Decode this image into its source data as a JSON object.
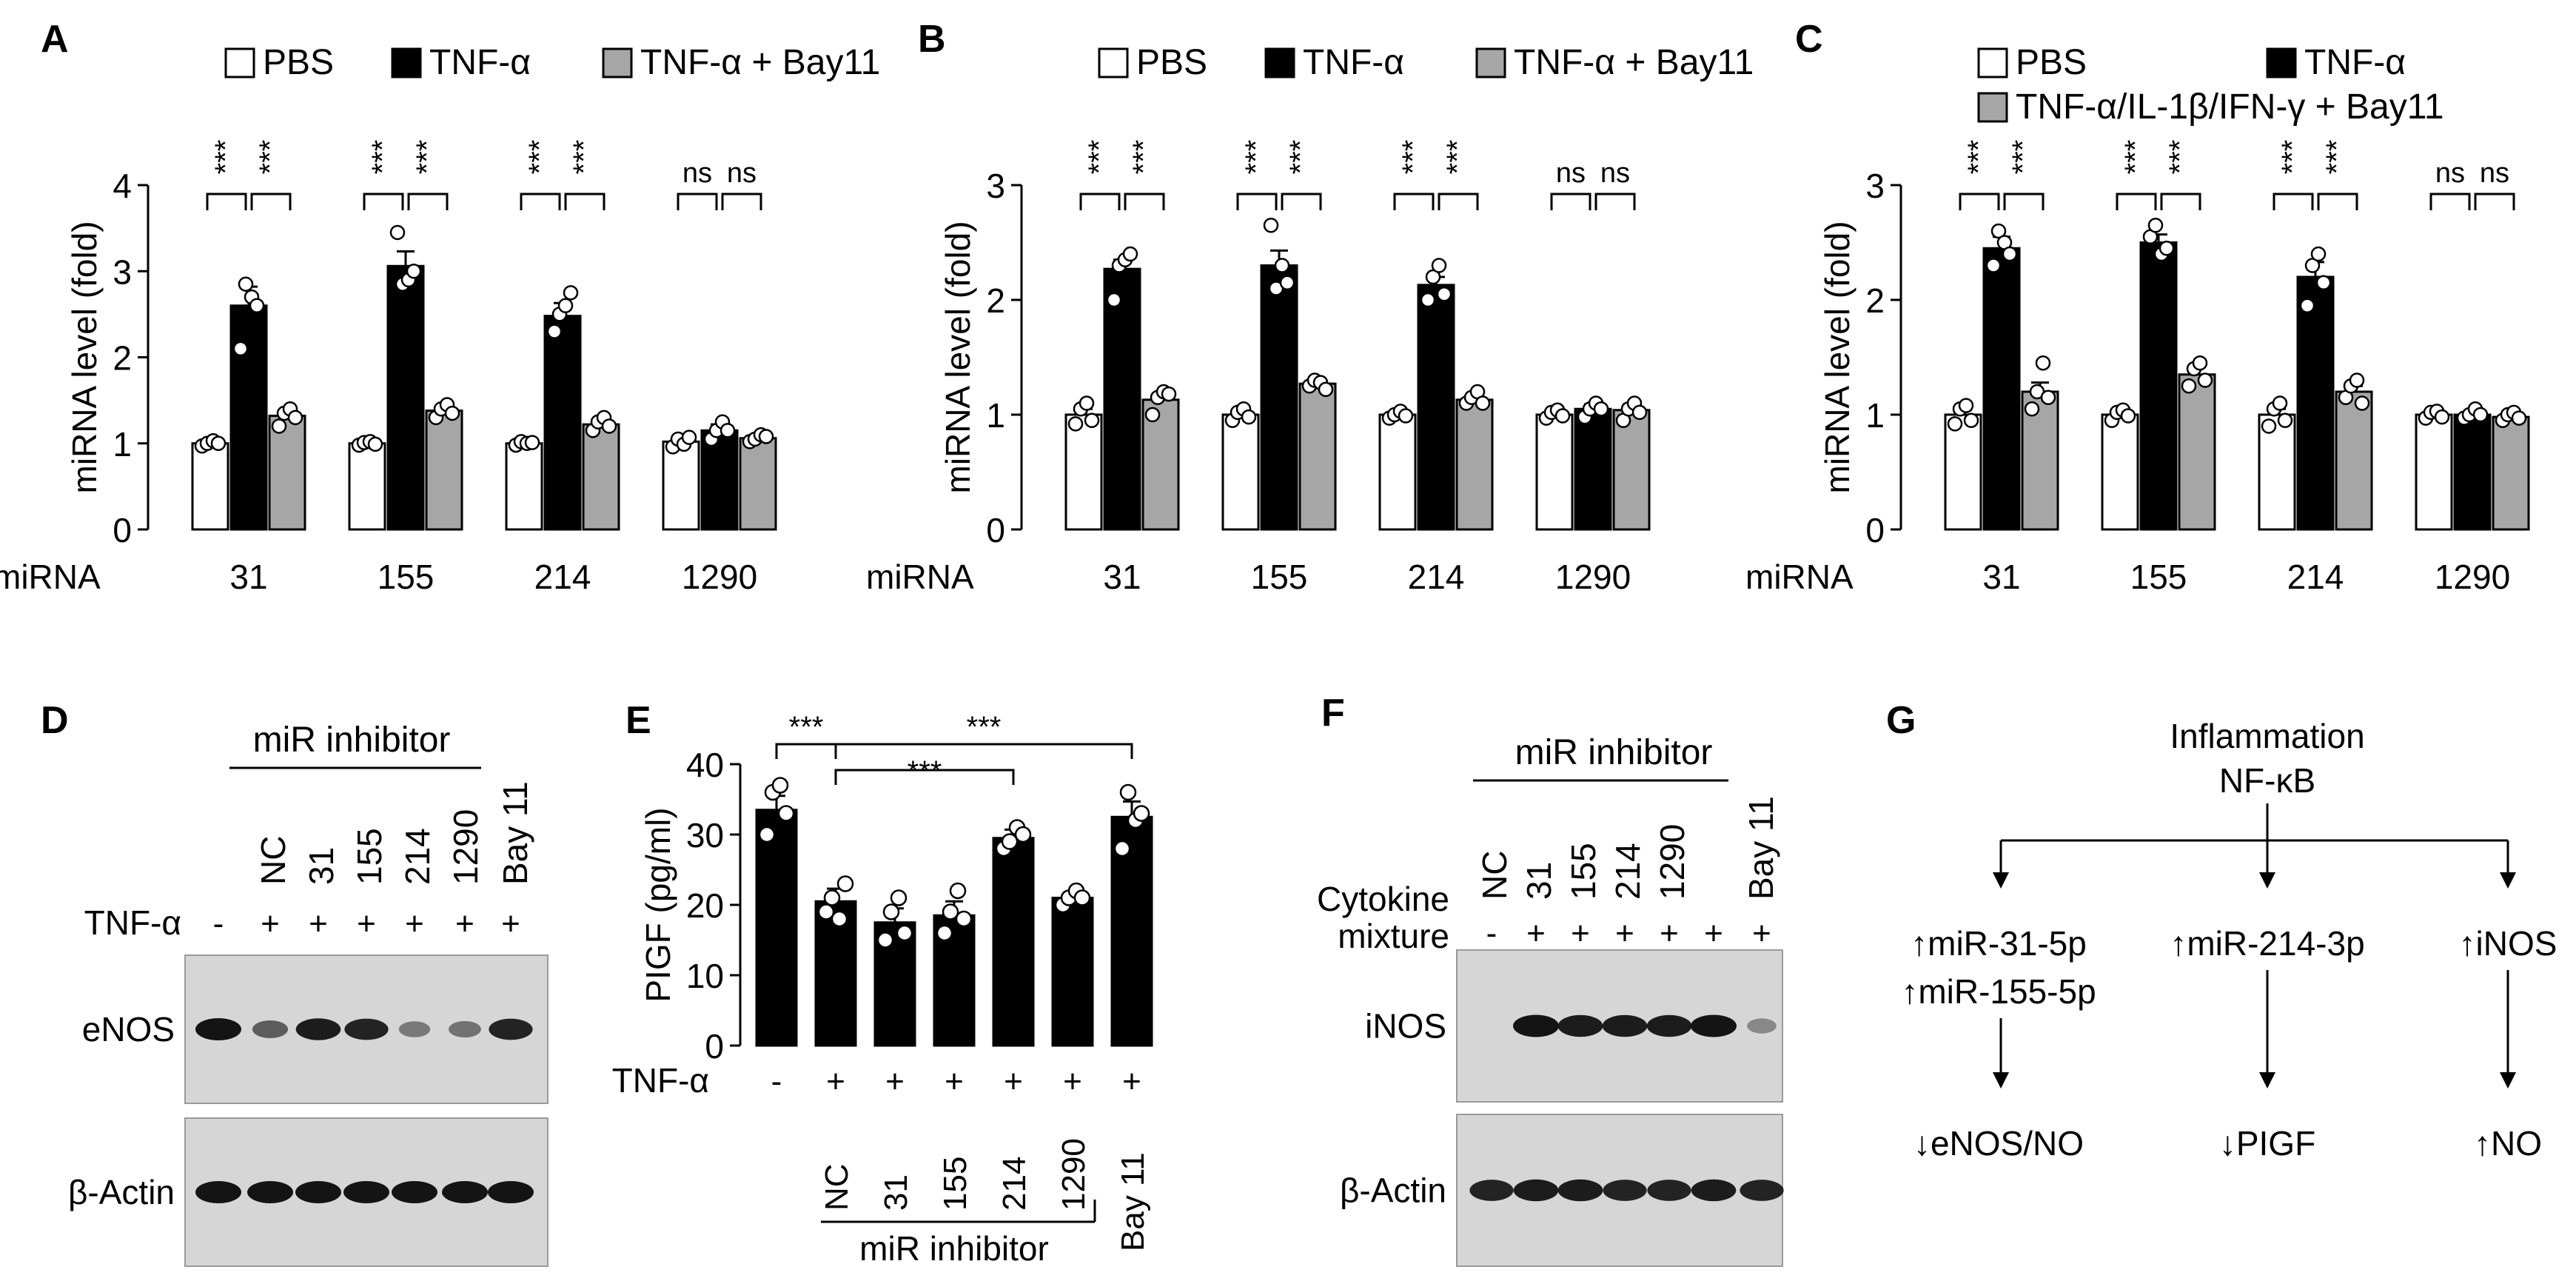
{
  "colors": {
    "PBS": "#ffffff",
    "TNF": "#000000",
    "treat": "#a6a6a6",
    "blot_bg": "#d6d6d6",
    "band": "#141414"
  },
  "chart_data": [
    {
      "panel": "A",
      "type": "bar",
      "ylabel": "miRNA level (fold)",
      "xlabel": "miRNA",
      "ylim": [
        0,
        4
      ],
      "yticks": [
        "0",
        "1",
        "2",
        "3",
        "4"
      ],
      "categories": [
        "31",
        "155",
        "214",
        "1290"
      ],
      "legend": [
        "PBS",
        "TNF-α",
        "TNF-α + Bay11"
      ],
      "series": [
        {
          "name": "PBS",
          "values": [
            1.0,
            1.0,
            1.0,
            1.02
          ],
          "err": [
            0.03,
            0.03,
            0.03,
            0.05
          ]
        },
        {
          "name": "TNF-α",
          "values": [
            2.6,
            3.06,
            2.48,
            1.15
          ],
          "err": [
            0.22,
            0.17,
            0.15,
            0.07
          ]
        },
        {
          "name": "TNF-α + Bay11",
          "values": [
            1.32,
            1.38,
            1.22,
            1.06
          ],
          "err": [
            0.07,
            0.06,
            0.05,
            0.04
          ]
        }
      ],
      "points": [
        [
          [
            0.97,
            1.0,
            1.03,
            1.0
          ],
          [
            0.98,
            1.01,
            1.02,
            0.99
          ],
          [
            0.98,
            1.02,
            1.0,
            1.01
          ],
          [
            0.96,
            1.05,
            0.99,
            1.07
          ]
        ],
        [
          [
            2.1,
            2.85,
            2.7,
            2.6
          ],
          [
            3.45,
            2.85,
            2.9,
            3.0
          ],
          [
            2.3,
            2.5,
            2.6,
            2.75
          ],
          [
            1.05,
            1.15,
            1.25,
            1.15
          ]
        ],
        [
          [
            1.2,
            1.35,
            1.4,
            1.3
          ],
          [
            1.3,
            1.4,
            1.45,
            1.35
          ],
          [
            1.15,
            1.25,
            1.3,
            1.2
          ],
          [
            1.02,
            1.05,
            1.1,
            1.08
          ]
        ]
      ],
      "significance": [
        [
          "***",
          "***"
        ],
        [
          "***",
          "***"
        ],
        [
          "***",
          "***"
        ],
        [
          "ns",
          "ns"
        ]
      ]
    },
    {
      "panel": "B",
      "type": "bar",
      "ylabel": "miRNA level (fold)",
      "xlabel": "miRNA",
      "ylim": [
        0,
        3
      ],
      "yticks": [
        "0",
        "1",
        "2",
        "3"
      ],
      "categories": [
        "31",
        "155",
        "214",
        "1290"
      ],
      "legend": [
        "PBS",
        "TNF-α",
        "TNF-α + Bay11"
      ],
      "series": [
        {
          "name": "PBS",
          "values": [
            1.0,
            1.0,
            1.0,
            1.0
          ],
          "err": [
            0.05,
            0.04,
            0.03,
            0.03
          ]
        },
        {
          "name": "TNF-α",
          "values": [
            2.27,
            2.3,
            2.13,
            1.05
          ],
          "err": [
            0.08,
            0.13,
            0.07,
            0.04
          ]
        },
        {
          "name": "TNF-α + Bay11",
          "values": [
            1.13,
            1.27,
            1.13,
            1.04
          ],
          "err": [
            0.05,
            0.03,
            0.04,
            0.05
          ]
        }
      ],
      "points": [
        [
          [
            0.92,
            1.05,
            1.1,
            0.95
          ],
          [
            0.95,
            1.02,
            1.05,
            0.98
          ],
          [
            0.97,
            1.0,
            1.03,
            0.99
          ],
          [
            0.97,
            1.02,
            1.04,
            0.99
          ]
        ],
        [
          [
            2.0,
            2.3,
            2.35,
            2.4
          ],
          [
            2.65,
            2.1,
            2.3,
            2.15
          ],
          [
            2.0,
            2.2,
            2.3,
            2.05
          ],
          [
            0.98,
            1.05,
            1.1,
            1.05
          ]
        ],
        [
          [
            1.0,
            1.15,
            1.2,
            1.18
          ],
          [
            1.25,
            1.3,
            1.28,
            1.22
          ],
          [
            1.1,
            1.15,
            1.2,
            1.1
          ],
          [
            0.95,
            1.05,
            1.1,
            1.02
          ]
        ]
      ],
      "significance": [
        [
          "***",
          "***"
        ],
        [
          "***",
          "***"
        ],
        [
          "***",
          "***"
        ],
        [
          "ns",
          "ns"
        ]
      ]
    },
    {
      "panel": "C",
      "type": "bar",
      "ylabel": "miRNA level (fold)",
      "xlabel": "miRNA",
      "ylim": [
        0,
        3
      ],
      "yticks": [
        "0",
        "1",
        "2",
        "3"
      ],
      "categories": [
        "31",
        "155",
        "214",
        "1290"
      ],
      "legend": [
        "PBS",
        "TNF-α",
        "TNF-α/IL-1β/IFN-γ + Bay11"
      ],
      "series": [
        {
          "name": "PBS",
          "values": [
            1.0,
            1.0,
            1.0,
            1.0
          ],
          "err": [
            0.04,
            0.03,
            0.05,
            0.03
          ]
        },
        {
          "name": "TNF-α",
          "values": [
            2.45,
            2.5,
            2.2,
            1.0
          ],
          "err": [
            0.1,
            0.07,
            0.13,
            0.03
          ]
        },
        {
          "name": "TNF-α/IL-1β/IFN-γ + Bay11",
          "values": [
            1.2,
            1.35,
            1.2,
            0.98
          ],
          "err": [
            0.08,
            0.07,
            0.05,
            0.03
          ]
        }
      ],
      "points": [
        [
          [
            0.92,
            1.05,
            1.08,
            0.95
          ],
          [
            0.95,
            1.02,
            1.04,
            0.99
          ],
          [
            0.9,
            1.05,
            1.1,
            0.95
          ],
          [
            0.97,
            1.02,
            1.03,
            0.98
          ]
        ],
        [
          [
            2.3,
            2.6,
            2.5,
            2.4
          ],
          [
            2.55,
            2.65,
            2.4,
            2.45
          ],
          [
            1.95,
            2.3,
            2.4,
            2.15
          ],
          [
            0.97,
            1.0,
            1.05,
            1.0
          ]
        ],
        [
          [
            1.05,
            1.2,
            1.45,
            1.15
          ],
          [
            1.25,
            1.4,
            1.45,
            1.3
          ],
          [
            1.15,
            1.25,
            1.3,
            1.1
          ],
          [
            0.95,
            1.0,
            1.02,
            0.97
          ]
        ]
      ],
      "significance": [
        [
          "***",
          "***"
        ],
        [
          "***",
          "***"
        ],
        [
          "***",
          "***"
        ],
        [
          "ns",
          "ns"
        ]
      ]
    },
    {
      "panel": "E",
      "type": "bar",
      "ylabel": "PIGF (pg/ml)",
      "ylim": [
        0,
        40
      ],
      "yticks": [
        "0",
        "10",
        "20",
        "30",
        "40"
      ],
      "categories": [
        "-",
        "NC",
        "31",
        "155",
        "214",
        "1290",
        "Bay 11"
      ],
      "treatment_label": "TNF-α",
      "treatment": [
        "-",
        "+",
        "+",
        "+",
        "+",
        "+",
        "+"
      ],
      "group_label": "miR inhibitor",
      "values": [
        33.5,
        20.5,
        17.5,
        18.5,
        29.5,
        21.0,
        32.5
      ],
      "err": [
        2.0,
        1.8,
        2.0,
        2.0,
        1.2,
        0.8,
        2.2
      ],
      "points": [
        [
          30,
          36,
          37,
          33
        ],
        [
          19,
          21,
          18,
          23
        ],
        [
          15,
          19,
          21,
          16
        ],
        [
          16,
          19,
          22,
          18
        ],
        [
          28,
          29,
          31,
          30
        ],
        [
          20,
          21,
          22,
          21
        ],
        [
          28,
          36,
          32,
          33
        ]
      ],
      "significance": [
        {
          "from": 0,
          "to": 1,
          "label": "***"
        },
        {
          "from": 1,
          "to": 4,
          "label": "***"
        },
        {
          "from": 1,
          "to": 6,
          "label": "***"
        }
      ]
    }
  ],
  "panels": {
    "A": "A",
    "B": "B",
    "C": "C",
    "D": "D",
    "E": "E",
    "F": "F",
    "G": "G"
  },
  "blot_D": {
    "header": "miR inhibitor",
    "lanes": [
      "NC",
      "31",
      "155",
      "214",
      "1290",
      "Bay 11"
    ],
    "treatment_label": "TNF-α",
    "treatment": [
      "-",
      "+",
      "+",
      "+",
      "+",
      "+",
      "+"
    ],
    "rows": [
      {
        "label": "eNOS",
        "intensity": [
          1.0,
          0.5,
          0.95,
          0.9,
          0.3,
          0.35,
          0.9
        ]
      },
      {
        "label": "β-Actin",
        "intensity": [
          1,
          1,
          1,
          1,
          1,
          1,
          1
        ]
      }
    ]
  },
  "blot_F": {
    "header": "miR inhibitor",
    "lanes": [
      "NC",
      "31",
      "155",
      "214",
      "1290",
      "Bay 11"
    ],
    "treatment_label": [
      "Cytokine",
      "mixture"
    ],
    "treatment": [
      "-",
      "+",
      "+",
      "+",
      "+",
      "+",
      "+"
    ],
    "rows": [
      {
        "label": "iNOS",
        "intensity": [
          0,
          1,
          0.95,
          0.95,
          0.95,
          1,
          0.2
        ]
      },
      {
        "label": "β-Actin",
        "intensity": [
          0.9,
          0.95,
          0.95,
          0.9,
          0.9,
          0.95,
          0.9
        ]
      }
    ]
  },
  "pathway_G": {
    "top": [
      "Inflammation",
      "NF-κB"
    ],
    "mid": [
      [
        "↑miR-31-5p",
        "↑miR-155-5p"
      ],
      [
        "↑miR-214-3p"
      ],
      [
        "↑iNOS"
      ]
    ],
    "bottom": [
      "↓eNOS/NO",
      "↓PIGF",
      "↑NO"
    ]
  }
}
